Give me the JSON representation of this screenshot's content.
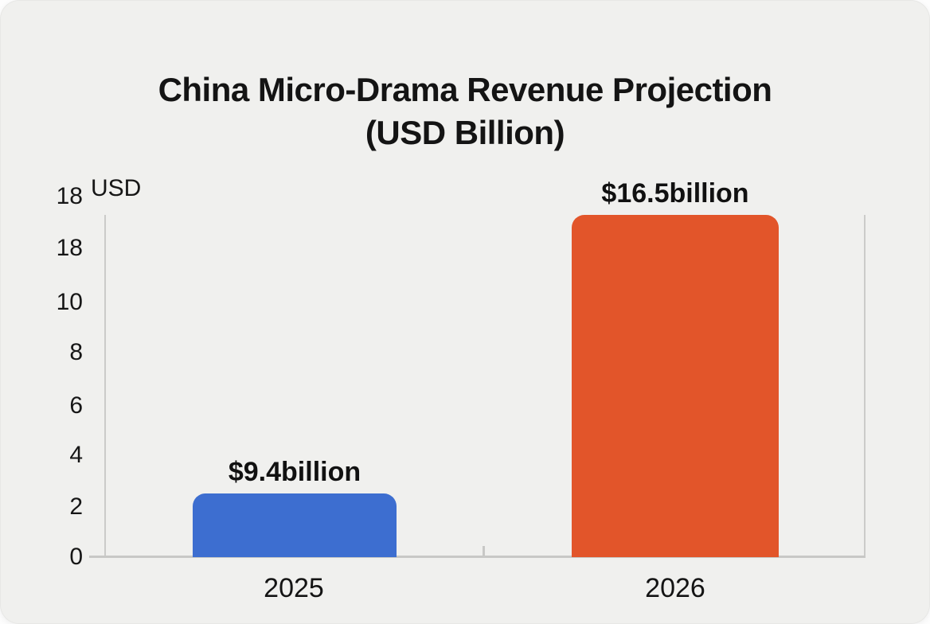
{
  "chart_data": {
    "type": "bar",
    "title": "China Micro-Drama Revenue Projection",
    "subtitle": "(USD Billion)",
    "y_axis_unit": "USD",
    "categories": [
      "2025",
      "2026"
    ],
    "values": [
      9.4,
      16.5
    ],
    "value_labels": [
      "$9.4billion",
      "$16.5billion"
    ],
    "series_colors": [
      "#3d6ed0",
      "#e2552a"
    ],
    "ytick_labels": [
      "18",
      "18",
      "10",
      "8",
      "6",
      "4",
      "2",
      "0"
    ],
    "ylim": [
      0,
      18
    ],
    "grid": false,
    "legend_position": "none",
    "background_color": "#f0f0ee",
    "axis_color": "#cbcbc9",
    "text_color": "#141414"
  }
}
